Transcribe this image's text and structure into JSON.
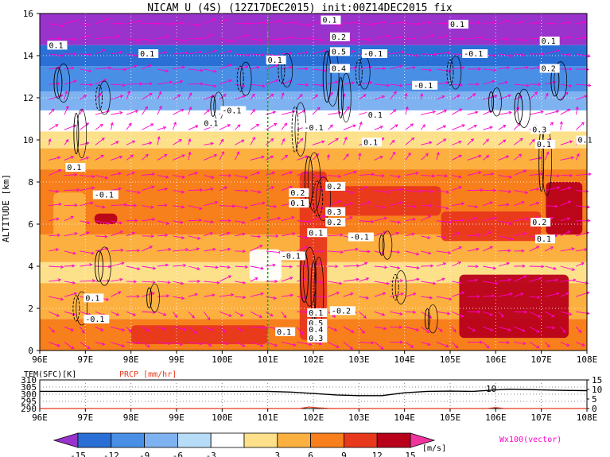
{
  "chart_data": {
    "type": "heatmap",
    "title": "NICAM U (4S) (12Z17DEC2015) init:00Z14DEC2015 fix",
    "main": {
      "ylabel": "ALTITUDE [km]",
      "x_ticks": [
        "96E",
        "97E",
        "98E",
        "99E",
        "100E",
        "101E",
        "102E",
        "103E",
        "104E",
        "105E",
        "106E",
        "107E",
        "108E"
      ],
      "y_ticks": [
        "0",
        "2",
        "4",
        "6",
        "8",
        "10",
        "12",
        "14",
        "16"
      ],
      "xlim": [
        96,
        108
      ],
      "ylim": [
        0,
        16
      ],
      "grid": true,
      "marker_line_lon": 101,
      "layers": [
        {
          "z0": 0,
          "z1": 1.5,
          "level": 9
        },
        {
          "z0": 1.5,
          "z1": 3.2,
          "level": 6
        },
        {
          "z0": 3.2,
          "z1": 4.2,
          "level": 3
        },
        {
          "z0": 4.2,
          "z1": 5.5,
          "level": 6
        },
        {
          "z0": 5.5,
          "z1": 8.6,
          "level": 9
        },
        {
          "z0": 8.6,
          "z1": 9.6,
          "level": 6
        },
        {
          "z0": 9.6,
          "z1": 10.4,
          "level": 3
        },
        {
          "z0": 10.4,
          "z1": 11.4,
          "level": 0
        },
        {
          "z0": 11.4,
          "z1": 12.3,
          "level": -6
        },
        {
          "z0": 12.3,
          "z1": 13.5,
          "level": -9
        },
        {
          "z0": 13.5,
          "z1": 14.5,
          "level": -12
        },
        {
          "z0": 14.5,
          "z1": 16,
          "level": -15
        }
      ],
      "patches": [
        {
          "lon0": 105.2,
          "lon1": 107.6,
          "z0": 0.6,
          "z1": 3.6,
          "level": 15
        },
        {
          "lon0": 101.7,
          "lon1": 102.3,
          "z0": 0.5,
          "z1": 8.5,
          "level": 12
        },
        {
          "lon0": 98.0,
          "lon1": 101.0,
          "z0": 0.3,
          "z1": 1.2,
          "level": 12
        },
        {
          "lon0": 102.3,
          "lon1": 104.8,
          "z0": 6.4,
          "z1": 7.8,
          "level": 12
        },
        {
          "lon0": 104.8,
          "lon1": 107.0,
          "z0": 5.2,
          "z1": 6.6,
          "level": 12
        },
        {
          "lon0": 97.2,
          "lon1": 97.7,
          "z0": 6.0,
          "z1": 6.5,
          "level": 15
        },
        {
          "lon0": 107.1,
          "lon1": 107.9,
          "z0": 5.5,
          "z1": 8.0,
          "level": 15
        },
        {
          "lon0": 100.6,
          "lon1": 101.3,
          "z0": 3.3,
          "z1": 4.8,
          "level": 0
        },
        {
          "lon0": 96.3,
          "lon1": 97.0,
          "z0": 5.0,
          "z1": 7.5,
          "level": 6
        }
      ],
      "contour_labels": [
        {
          "text": "0.1",
          "lon": 96.2,
          "z": 14.4
        },
        {
          "text": "0.1",
          "lon": 98.2,
          "z": 14.0
        },
        {
          "text": "0.1",
          "lon": 101.0,
          "z": 13.7
        },
        {
          "text": "-0.1",
          "lon": 100.0,
          "z": 11.3
        },
        {
          "text": "0.1",
          "lon": 99.6,
          "z": 10.7
        },
        {
          "text": "0.1",
          "lon": 96.6,
          "z": 8.6
        },
        {
          "text": "-0.1",
          "lon": 97.2,
          "z": 7.3
        },
        {
          "text": "0.1",
          "lon": 102.2,
          "z": 15.6
        },
        {
          "text": "0.2",
          "lon": 102.4,
          "z": 14.8
        },
        {
          "text": "0.5",
          "lon": 102.4,
          "z": 14.1
        },
        {
          "text": "-0.1",
          "lon": 103.1,
          "z": 14.0
        },
        {
          "text": "0.4",
          "lon": 102.4,
          "z": 13.3
        },
        {
          "text": "-0.1",
          "lon": 104.2,
          "z": 12.5
        },
        {
          "text": "0.1",
          "lon": 103.2,
          "z": 11.1
        },
        {
          "text": "-0.1",
          "lon": 101.8,
          "z": 10.5
        },
        {
          "text": "0.1",
          "lon": 103.1,
          "z": 9.8
        },
        {
          "text": "0.1",
          "lon": 105.0,
          "z": 15.4
        },
        {
          "text": "-0.1",
          "lon": 105.3,
          "z": 14.0
        },
        {
          "text": "0.1",
          "lon": 107.0,
          "z": 14.6
        },
        {
          "text": "0.2",
          "lon": 107.0,
          "z": 13.3
        },
        {
          "text": "0.3",
          "lon": 106.8,
          "z": 10.4
        },
        {
          "text": "0.1",
          "lon": 106.9,
          "z": 9.7
        },
        {
          "text": "0.1",
          "lon": 107.8,
          "z": 9.9
        },
        {
          "text": "0.2",
          "lon": 101.5,
          "z": 7.4
        },
        {
          "text": "0.1",
          "lon": 101.5,
          "z": 6.9
        },
        {
          "text": "0.2",
          "lon": 102.3,
          "z": 7.7
        },
        {
          "text": "0.3",
          "lon": 102.3,
          "z": 6.5
        },
        {
          "text": "0.2",
          "lon": 102.3,
          "z": 6.0
        },
        {
          "text": "0.1",
          "lon": 101.9,
          "z": 5.5
        },
        {
          "text": "-0.1",
          "lon": 102.8,
          "z": 5.3
        },
        {
          "text": "-0.1",
          "lon": 101.3,
          "z": 4.4
        },
        {
          "text": "0.2",
          "lon": 106.8,
          "z": 6.0
        },
        {
          "text": "0.1",
          "lon": 106.9,
          "z": 5.2
        },
        {
          "text": "0.1",
          "lon": 97.0,
          "z": 2.4
        },
        {
          "text": "-0.1",
          "lon": 97.0,
          "z": 1.4
        },
        {
          "text": "0.1",
          "lon": 101.9,
          "z": 1.7
        },
        {
          "text": "-0.2",
          "lon": 102.4,
          "z": 1.8
        },
        {
          "text": "0.5",
          "lon": 101.9,
          "z": 1.2
        },
        {
          "text": "0.4",
          "lon": 101.9,
          "z": 0.9
        },
        {
          "text": "0.3",
          "lon": 101.9,
          "z": 0.5
        },
        {
          "text": "0.1",
          "lon": 101.2,
          "z": 0.8
        }
      ],
      "vector_label": "Wx100(vector)"
    },
    "lower_panel": {
      "left_label": "TEM(SFC)[K]",
      "right_label": "PRCP [mm/hr]",
      "left_ticks": [
        "290",
        "295",
        "300",
        "305",
        "310"
      ],
      "right_ticks": [
        "0",
        "5",
        "10",
        "15"
      ],
      "x_ticks": [
        "96E",
        "97E",
        "98E",
        "99E",
        "100E",
        "101E",
        "102E",
        "103E",
        "104E",
        "105E",
        "106E",
        "107E",
        "108E"
      ],
      "annotation": "10",
      "temperature_series": {
        "name": "TEM(SFC)",
        "lon": [
          96,
          96.5,
          97,
          98,
          99,
          100,
          100.8,
          101,
          101.5,
          102,
          102.5,
          103,
          103.5,
          104,
          104.5,
          105,
          105.5,
          106,
          106.3,
          107,
          107.5,
          108
        ],
        "values": [
          302,
          302,
          302,
          302,
          302,
          302,
          302,
          302,
          301.5,
          300.5,
          299.5,
          299,
          299,
          301,
          302,
          302.2,
          302,
          303,
          303.5,
          303,
          302.7,
          302.5
        ]
      },
      "precip_series": {
        "name": "PRCP",
        "lon": [
          96,
          101.7,
          101.9,
          102.1,
          102.4,
          105.8,
          106.0,
          106.2,
          108
        ],
        "values": [
          0,
          0,
          0.8,
          0.4,
          0,
          0,
          0.5,
          0,
          0
        ]
      }
    },
    "colorbar": {
      "ticks": [
        "-15",
        "-12",
        "-9",
        "-6",
        "-3",
        "3",
        "6",
        "9",
        "12",
        "15"
      ],
      "unit": "[m/s]",
      "colors": [
        "#9933cc",
        "#2a6fd6",
        "#4a8fe6",
        "#7fb2f0",
        "#b6dcf7",
        "#ffffff",
        "#fde08a",
        "#fcb040",
        "#f77f1c",
        "#e8381c",
        "#b8001a",
        "#f0349e"
      ]
    }
  }
}
